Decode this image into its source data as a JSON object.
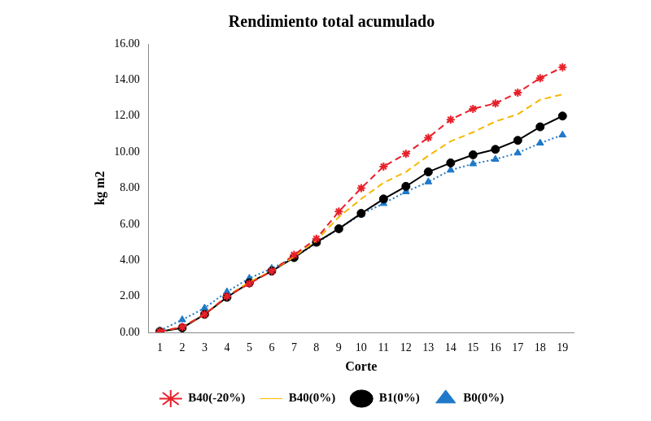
{
  "chart_data": {
    "type": "line",
    "title": "Rendimiento total acumulado",
    "x_label": "Corte",
    "y_label": "kg m2",
    "categories": [
      1,
      2,
      3,
      4,
      5,
      6,
      7,
      8,
      9,
      10,
      11,
      12,
      13,
      14,
      15,
      16,
      17,
      18,
      19
    ],
    "ylim": [
      0,
      16
    ],
    "yticks": [
      {
        "value": 0,
        "label": "0.00"
      },
      {
        "value": 2,
        "label": "2.00"
      },
      {
        "value": 4,
        "label": "4.00"
      },
      {
        "value": 6,
        "label": "6.00"
      },
      {
        "value": 8,
        "label": "8.00"
      },
      {
        "value": 10,
        "label": "10.00"
      },
      {
        "value": 12,
        "label": "12.00"
      },
      {
        "value": 14,
        "label": "14.00"
      },
      {
        "value": 16,
        "label": "16.00"
      }
    ],
    "grid": false,
    "legend": "bottom",
    "series": [
      {
        "name": "B40(-20%)",
        "color": "#e8202a",
        "marker": "star",
        "line_style": "dashed",
        "values": [
          0.05,
          0.3,
          1.0,
          2.0,
          2.7,
          3.4,
          4.3,
          5.2,
          6.7,
          8.0,
          9.2,
          9.9,
          10.8,
          11.8,
          12.4,
          12.7,
          13.3,
          14.1,
          14.7
        ]
      },
      {
        "name": "B40(0%)",
        "color": "#f5b800",
        "marker": "none",
        "line_style": "dashed",
        "values": [
          0.05,
          0.3,
          1.0,
          2.0,
          2.8,
          3.4,
          4.2,
          5.1,
          6.4,
          7.4,
          8.3,
          8.9,
          9.8,
          10.6,
          11.1,
          11.7,
          12.1,
          12.9,
          13.2
        ]
      },
      {
        "name": "B1(0%)",
        "color": "#000000",
        "marker": "circle",
        "line_style": "solid",
        "values": [
          0.05,
          0.25,
          1.0,
          1.95,
          2.75,
          3.4,
          4.15,
          5.0,
          5.75,
          6.6,
          7.4,
          8.1,
          8.9,
          9.4,
          9.85,
          10.15,
          10.65,
          11.4,
          12.0
        ]
      },
      {
        "name": "B0(0%)",
        "color": "#1f78c8",
        "marker": "triangle",
        "line_style": "dotted",
        "values": [
          0.1,
          0.7,
          1.35,
          2.25,
          3.0,
          3.55,
          4.15,
          4.95,
          5.75,
          6.55,
          7.15,
          7.8,
          8.35,
          9.0,
          9.35,
          9.6,
          9.95,
          10.5,
          10.95
        ]
      }
    ]
  }
}
